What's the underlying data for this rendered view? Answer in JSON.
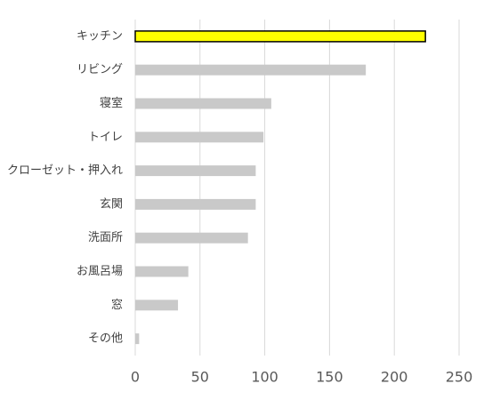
{
  "chart_data": {
    "type": "barh",
    "categories": [
      "キッチン",
      "リビング",
      "寝室",
      "トイレ",
      "クローゼット・押入れ",
      "玄関",
      "洗面所",
      "お風呂場",
      "窓",
      "その他"
    ],
    "values": [
      224,
      178,
      105,
      99,
      93,
      93,
      87,
      41,
      33,
      3
    ],
    "colors": [
      "#ffff00",
      "#c9c9c9",
      "#c9c9c9",
      "#c9c9c9",
      "#c9c9c9",
      "#c9c9c9",
      "#c9c9c9",
      "#c9c9c9",
      "#c9c9c9",
      "#c9c9c9"
    ],
    "edge_colors": [
      "#000000",
      null,
      null,
      null,
      null,
      null,
      null,
      null,
      null,
      null
    ],
    "xlim": [
      0,
      250
    ],
    "xticks": [
      0,
      50,
      100,
      150,
      200,
      250
    ],
    "grid": true
  }
}
